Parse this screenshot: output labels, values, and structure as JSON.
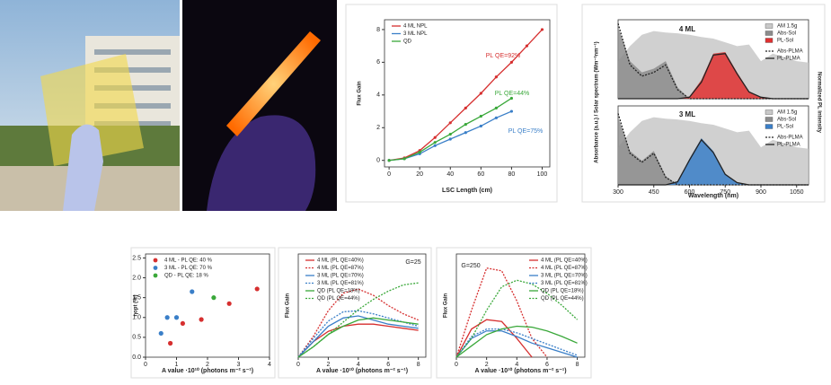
{
  "chart_data": [
    {
      "type": "line",
      "xlabel": "LSC Length (cm)",
      "ylabel": "Flux Gain",
      "x": [
        0,
        10,
        20,
        30,
        40,
        50,
        60,
        70,
        80,
        90,
        100
      ],
      "xlim": [
        -3,
        105
      ],
      "xticks": [
        0,
        20,
        40,
        60,
        80,
        100
      ],
      "ylim": [
        -0.4,
        8.6
      ],
      "yticks": [
        0,
        2,
        4,
        6,
        8
      ],
      "legend": "upper left",
      "markers": true,
      "series": [
        {
          "name": "4 ML NPL",
          "color": "#d62f2f",
          "values": [
            0,
            0.15,
            0.6,
            1.4,
            2.3,
            3.2,
            4.1,
            5.1,
            6.0,
            7.0,
            8.0
          ]
        },
        {
          "name": "3 ML NPL",
          "color": "#3a7fc8",
          "values": [
            0,
            0.1,
            0.4,
            0.9,
            1.3,
            1.7,
            2.1,
            2.6,
            3.0,
            null,
            null
          ]
        },
        {
          "name": "QD",
          "color": "#3aa83a",
          "values": [
            0,
            0.1,
            0.5,
            1.1,
            1.6,
            2.2,
            2.7,
            3.2,
            3.8,
            null,
            null
          ]
        }
      ],
      "annotations": [
        "PL QE=92%",
        "PL QE=44%",
        "PL QE=75%"
      ]
    },
    {
      "type": "area",
      "title": "4 ML",
      "ylabel": "Absorbance (a.u.) / Solar spectrum (Wm⁻²nm⁻¹)",
      "y2label": "Normalized PL intensity",
      "x": [
        300,
        350,
        400,
        450,
        500,
        550,
        600,
        650,
        700,
        750,
        800,
        850,
        900,
        950,
        1000,
        1050,
        1100
      ],
      "xlim": [
        300,
        1100
      ],
      "ylim": [
        0,
        1.05
      ],
      "legend": "upper right",
      "series": [
        {
          "name": "AM 1.5g",
          "color": "#c8c8c8",
          "fill": true,
          "values": [
            0.5,
            0.7,
            0.85,
            0.9,
            0.88,
            0.87,
            0.85,
            0.82,
            0.8,
            0.75,
            0.7,
            0.72,
            0.5,
            0.6,
            0.55,
            0.5,
            0.48
          ]
        },
        {
          "name": "Abs-Sol",
          "color": "#8c8c8c",
          "fill": true,
          "values": [
            0.95,
            0.5,
            0.35,
            0.4,
            0.5,
            0.15,
            0,
            0,
            0,
            0,
            0,
            0,
            0,
            0,
            0,
            0,
            0
          ]
        },
        {
          "name": "PL-Sol",
          "color": "#e03030",
          "fill": true,
          "values": [
            0,
            0,
            0,
            0,
            0,
            0,
            0.03,
            0.25,
            0.6,
            0.62,
            0.35,
            0.1,
            0.02,
            0,
            0,
            0,
            0
          ]
        },
        {
          "name": "Abs-PLMA",
          "color": "#222222",
          "dash": true,
          "values": [
            1.0,
            0.45,
            0.3,
            0.35,
            0.45,
            0.12,
            0,
            0,
            0,
            0,
            0,
            0,
            0,
            0,
            0,
            0,
            0
          ]
        },
        {
          "name": "PL-PLMA",
          "color": "#222222",
          "values": [
            0,
            0,
            0,
            0,
            0,
            0,
            0.02,
            0.22,
            0.58,
            0.6,
            0.33,
            0.09,
            0.02,
            0,
            0,
            0,
            0
          ]
        }
      ]
    },
    {
      "type": "area",
      "title": "3 ML",
      "xlabel": "Wavelength (nm)",
      "x": [
        300,
        350,
        400,
        450,
        500,
        550,
        600,
        650,
        700,
        750,
        800,
        850,
        900,
        950,
        1000,
        1050,
        1100
      ],
      "xlim": [
        300,
        1100
      ],
      "xticks": [
        300,
        450,
        600,
        750,
        900,
        1050
      ],
      "ylim": [
        0,
        1.05
      ],
      "legend": "upper right",
      "series": [
        {
          "name": "AM 1.5g",
          "color": "#c8c8c8",
          "fill": true,
          "values": [
            0.5,
            0.7,
            0.85,
            0.9,
            0.88,
            0.87,
            0.85,
            0.82,
            0.8,
            0.75,
            0.7,
            0.72,
            0.5,
            0.6,
            0.55,
            0.5,
            0.48
          ]
        },
        {
          "name": "Abs-Sol",
          "color": "#8c8c8c",
          "fill": true,
          "values": [
            0.9,
            0.45,
            0.32,
            0.45,
            0.12,
            0,
            0,
            0,
            0,
            0,
            0,
            0,
            0,
            0,
            0,
            0,
            0
          ]
        },
        {
          "name": "PL-Sol",
          "color": "#3a7fc8",
          "fill": true,
          "values": [
            0,
            0,
            0,
            0,
            0,
            0.05,
            0.35,
            0.62,
            0.45,
            0.15,
            0.03,
            0,
            0,
            0,
            0,
            0,
            0
          ]
        },
        {
          "name": "Abs-PLMA",
          "color": "#222222",
          "dash": true,
          "values": [
            0.95,
            0.42,
            0.3,
            0.42,
            0.1,
            0,
            0,
            0,
            0,
            0,
            0,
            0,
            0,
            0,
            0,
            0,
            0
          ]
        },
        {
          "name": "PL-PLMA",
          "color": "#222222",
          "values": [
            0,
            0,
            0,
            0,
            0,
            0.04,
            0.33,
            0.6,
            0.43,
            0.14,
            0.03,
            0,
            0,
            0,
            0,
            0,
            0
          ]
        }
      ]
    },
    {
      "type": "scatter",
      "xlabel": "A value ·10¹⁰ (photons m⁻² s⁻¹)",
      "ylabel": "ηopt (%)",
      "xlim": [
        0,
        4
      ],
      "xticks": [
        0,
        1,
        2,
        3,
        4
      ],
      "ylim": [
        0,
        2.6
      ],
      "yticks": [
        {
          "value": 0,
          "label": "0.0"
        },
        0.5,
        {
          "value": 1,
          "label": "1.0"
        },
        1.5,
        {
          "value": 2,
          "label": "2.0"
        },
        2.5
      ],
      "legend": "upper left",
      "series": [
        {
          "name": "4 ML - PL QE: 40 %",
          "color": "#d62f2f",
          "x": [
            0.8,
            1.2,
            1.8,
            2.7,
            3.6
          ],
          "values": [
            0.35,
            0.85,
            0.95,
            1.35,
            1.72
          ]
        },
        {
          "name": "3 ML - PL QE: 70 %",
          "color": "#3a7fc8",
          "x": [
            0.5,
            0.7,
            1.0,
            1.5
          ],
          "values": [
            0.6,
            1.0,
            1.0,
            1.65
          ]
        },
        {
          "name": "QD -  PL QE: 18 %",
          "color": "#3aa83a",
          "x": [
            2.2
          ],
          "values": [
            1.5
          ]
        }
      ]
    },
    {
      "type": "line",
      "xlabel": "A value ·10¹⁰ (photons m⁻² s⁻¹)",
      "ylabel": "Flux Gain",
      "annotations": [
        "G=25"
      ],
      "x": [
        0,
        1,
        2,
        3,
        4,
        5,
        6,
        7,
        8
      ],
      "xlim": [
        0,
        8.5
      ],
      "xticks": [
        0,
        2,
        4,
        6,
        8
      ],
      "ylim": [
        0,
        1
      ],
      "legend": "upper left",
      "series": [
        {
          "name": "4 ML  (PL QE=40%)",
          "color": "#d62f2f",
          "values": [
            0,
            0.15,
            0.25,
            0.3,
            0.32,
            0.32,
            0.3,
            0.28,
            0.26
          ]
        },
        {
          "name": "4 ML  (PL QE=87%)",
          "color": "#d62f2f",
          "dash": true,
          "values": [
            0,
            0.2,
            0.45,
            0.62,
            0.66,
            0.6,
            0.5,
            0.42,
            0.36
          ]
        },
        {
          "name": "3 ML  (PL QE=70%)",
          "color": "#3a7fc8",
          "values": [
            0,
            0.15,
            0.3,
            0.38,
            0.4,
            0.36,
            0.32,
            0.3,
            0.28
          ]
        },
        {
          "name": "3 ML  (PL QE=81%)",
          "color": "#3a7fc8",
          "dash": true,
          "values": [
            0,
            0.18,
            0.35,
            0.44,
            0.45,
            0.42,
            0.38,
            0.34,
            0.3
          ]
        },
        {
          "name": "QD   (PL QE=18%)",
          "color": "#3aa83a",
          "values": [
            0,
            0.1,
            0.22,
            0.3,
            0.36,
            0.38,
            0.36,
            0.34,
            0.32
          ]
        },
        {
          "name": "QD   (PL QE=44%)",
          "color": "#3aa83a",
          "dash": true,
          "values": [
            0,
            0.1,
            0.22,
            0.34,
            0.46,
            0.56,
            0.64,
            0.7,
            0.72
          ]
        }
      ]
    },
    {
      "type": "line",
      "xlabel": "A value ·10¹⁰ (photons m⁻² s⁻¹)",
      "ylabel": "Flux Gain",
      "annotations": [
        "G=250"
      ],
      "x": [
        0,
        1,
        2,
        3,
        4,
        5,
        6,
        7,
        8
      ],
      "xlim": [
        0,
        8.5
      ],
      "xticks": [
        0,
        2,
        4,
        6,
        8
      ],
      "ylim": [
        0,
        1.1
      ],
      "legend": "upper right",
      "series": [
        {
          "name": "4 ML  (PL QE=40%)",
          "color": "#d62f2f",
          "values": [
            0,
            0.3,
            0.4,
            0.38,
            0.2,
            0,
            null,
            null,
            null
          ]
        },
        {
          "name": "4 ML  (PL QE=87%)",
          "color": "#d62f2f",
          "dash": true,
          "values": [
            0,
            0.5,
            0.95,
            0.92,
            0.6,
            0.2,
            0,
            null,
            null
          ]
        },
        {
          "name": "3 ML  (PL QE=70%)",
          "color": "#3a7fc8",
          "values": [
            0,
            0.2,
            0.28,
            0.28,
            0.22,
            0.15,
            0.1,
            0.05,
            0
          ]
        },
        {
          "name": "3 ML  (PL QE=81%)",
          "color": "#3a7fc8",
          "dash": true,
          "values": [
            0,
            0.22,
            0.3,
            0.3,
            0.26,
            0.2,
            0.14,
            0.08,
            0.02
          ]
        },
        {
          "name": "QD   (PL QE=18%)",
          "color": "#3aa83a",
          "values": [
            0,
            0.12,
            0.24,
            0.3,
            0.33,
            0.32,
            0.28,
            0.22,
            0.15
          ]
        },
        {
          "name": "QD   (PL QE=44%)",
          "color": "#3aa83a",
          "dash": true,
          "values": [
            0,
            0.2,
            0.5,
            0.75,
            0.82,
            0.78,
            0.68,
            0.55,
            0.4
          ]
        }
      ]
    }
  ]
}
